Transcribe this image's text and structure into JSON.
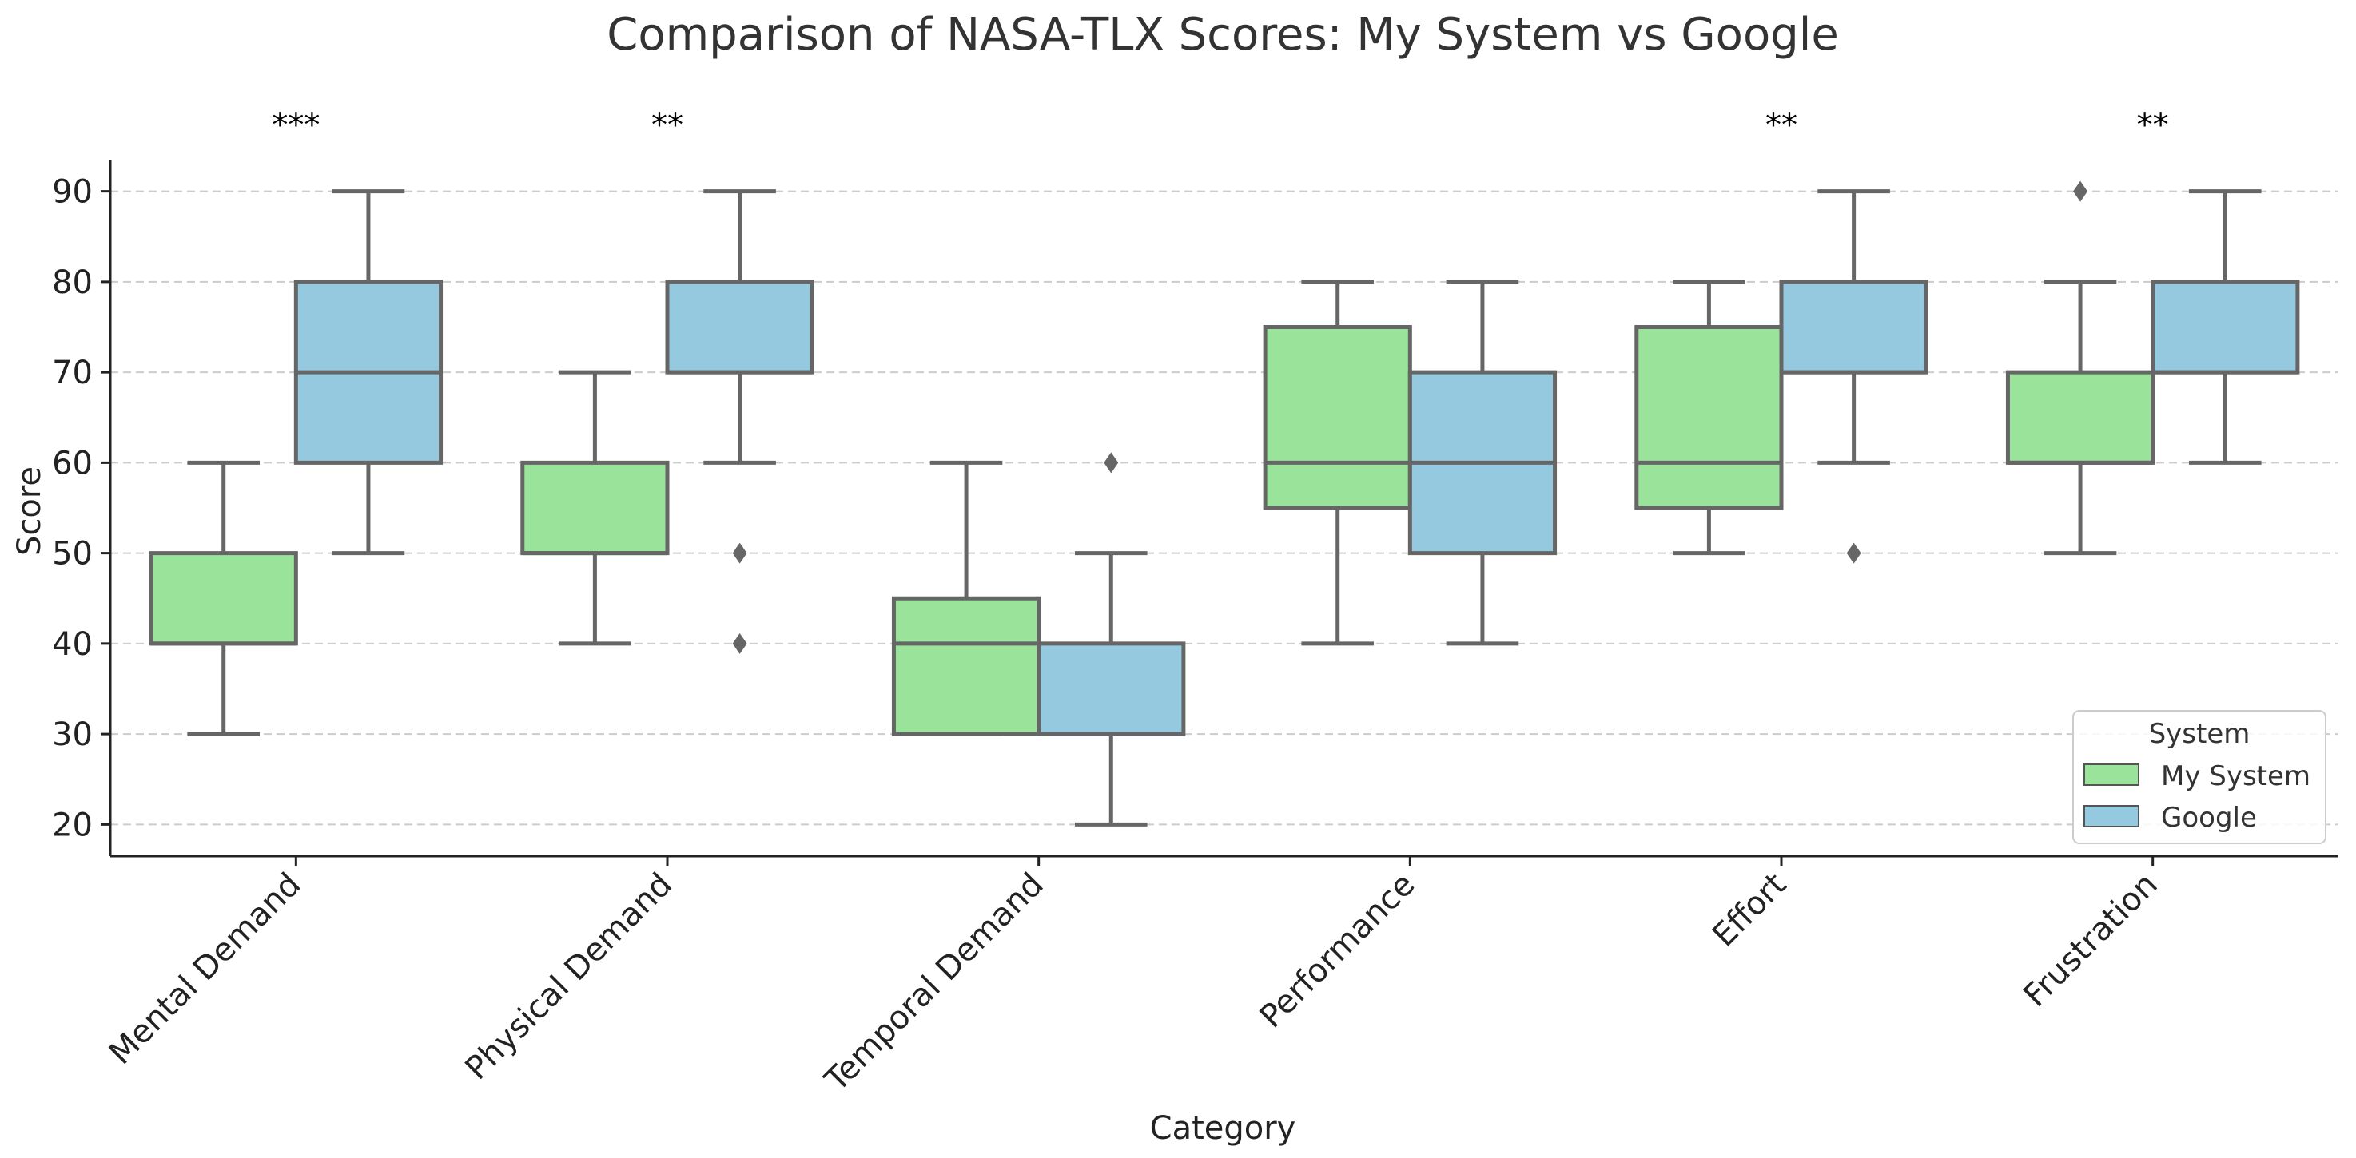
{
  "chart_data": {
    "type": "boxplot",
    "title": "Comparison of NASA-TLX Scores: My System vs Google",
    "xlabel": "Category",
    "ylabel": "Score",
    "ylim": [
      16.5,
      93.5
    ],
    "yticks": [
      20,
      30,
      40,
      50,
      60,
      70,
      80,
      90
    ],
    "grid": "y-dashed",
    "legend": {
      "title": "System",
      "placement": "bottom-right",
      "entries": [
        {
          "name": "My System",
          "color": "#9ae39a"
        },
        {
          "name": "Google",
          "color": "#95c9df"
        }
      ]
    },
    "categories": [
      "Mental Demand",
      "Physical Demand",
      "Temporal Demand",
      "Performance",
      "Effort",
      "Frustration"
    ],
    "significance": [
      "***",
      "**",
      "",
      "",
      "**",
      "**"
    ],
    "series": [
      {
        "name": "My System",
        "color": "#9ae39a",
        "boxes": [
          {
            "whisker_low": 30,
            "q1": 40,
            "median": 40,
            "q3": 50,
            "whisker_high": 60,
            "outliers": []
          },
          {
            "whisker_low": 40,
            "q1": 50,
            "median": 50,
            "q3": 60,
            "whisker_high": 70,
            "outliers": []
          },
          {
            "whisker_low": 30,
            "q1": 30,
            "median": 40,
            "q3": 45,
            "whisker_high": 60,
            "outliers": []
          },
          {
            "whisker_low": 40,
            "q1": 55,
            "median": 60,
            "q3": 75,
            "whisker_high": 80,
            "outliers": []
          },
          {
            "whisker_low": 50,
            "q1": 55,
            "median": 60,
            "q3": 75,
            "whisker_high": 80,
            "outliers": []
          },
          {
            "whisker_low": 50,
            "q1": 60,
            "median": 60,
            "q3": 70,
            "whisker_high": 80,
            "outliers": [
              90
            ]
          }
        ]
      },
      {
        "name": "Google",
        "color": "#95c9df",
        "boxes": [
          {
            "whisker_low": 50,
            "q1": 60,
            "median": 70,
            "q3": 80,
            "whisker_high": 90,
            "outliers": []
          },
          {
            "whisker_low": 60,
            "q1": 70,
            "median": 70,
            "q3": 80,
            "whisker_high": 90,
            "outliers": [
              50,
              40
            ]
          },
          {
            "whisker_low": 20,
            "q1": 30,
            "median": 30,
            "q3": 40,
            "whisker_high": 50,
            "outliers": [
              60
            ]
          },
          {
            "whisker_low": 40,
            "q1": 50,
            "median": 60,
            "q3": 70,
            "whisker_high": 80,
            "outliers": []
          },
          {
            "whisker_low": 60,
            "q1": 70,
            "median": 70,
            "q3": 80,
            "whisker_high": 90,
            "outliers": [
              50
            ]
          },
          {
            "whisker_low": 60,
            "q1": 70,
            "median": 70,
            "q3": 80,
            "whisker_high": 90,
            "outliers": []
          }
        ]
      }
    ]
  }
}
